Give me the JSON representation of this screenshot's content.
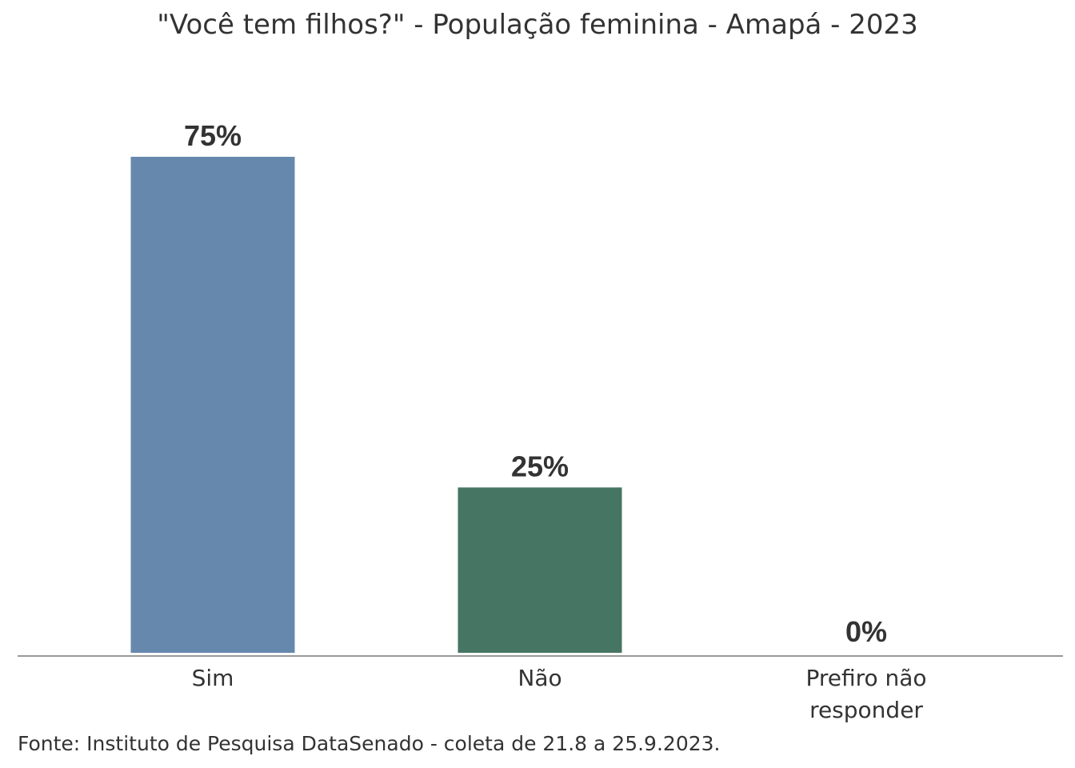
{
  "chart_data": {
    "type": "bar",
    "title": "\"Você tem filhos?\" - População feminina - Amapá - 2023",
    "categories": [
      [
        "Sim"
      ],
      [
        "Não"
      ],
      [
        "Prefiro não",
        "responder"
      ]
    ],
    "values": [
      75,
      25,
      0
    ],
    "value_labels": [
      "75%",
      "25%",
      "0%"
    ],
    "colors": [
      "#6688ad",
      "#467563",
      "#b0b0b0"
    ],
    "axis_color": "#999999",
    "ylim": [
      0,
      75
    ],
    "grid": false,
    "legend": "none"
  },
  "source": "Fonte: Instituto de Pesquisa DataSenado - coleta de 21.8 a 25.9.2023."
}
